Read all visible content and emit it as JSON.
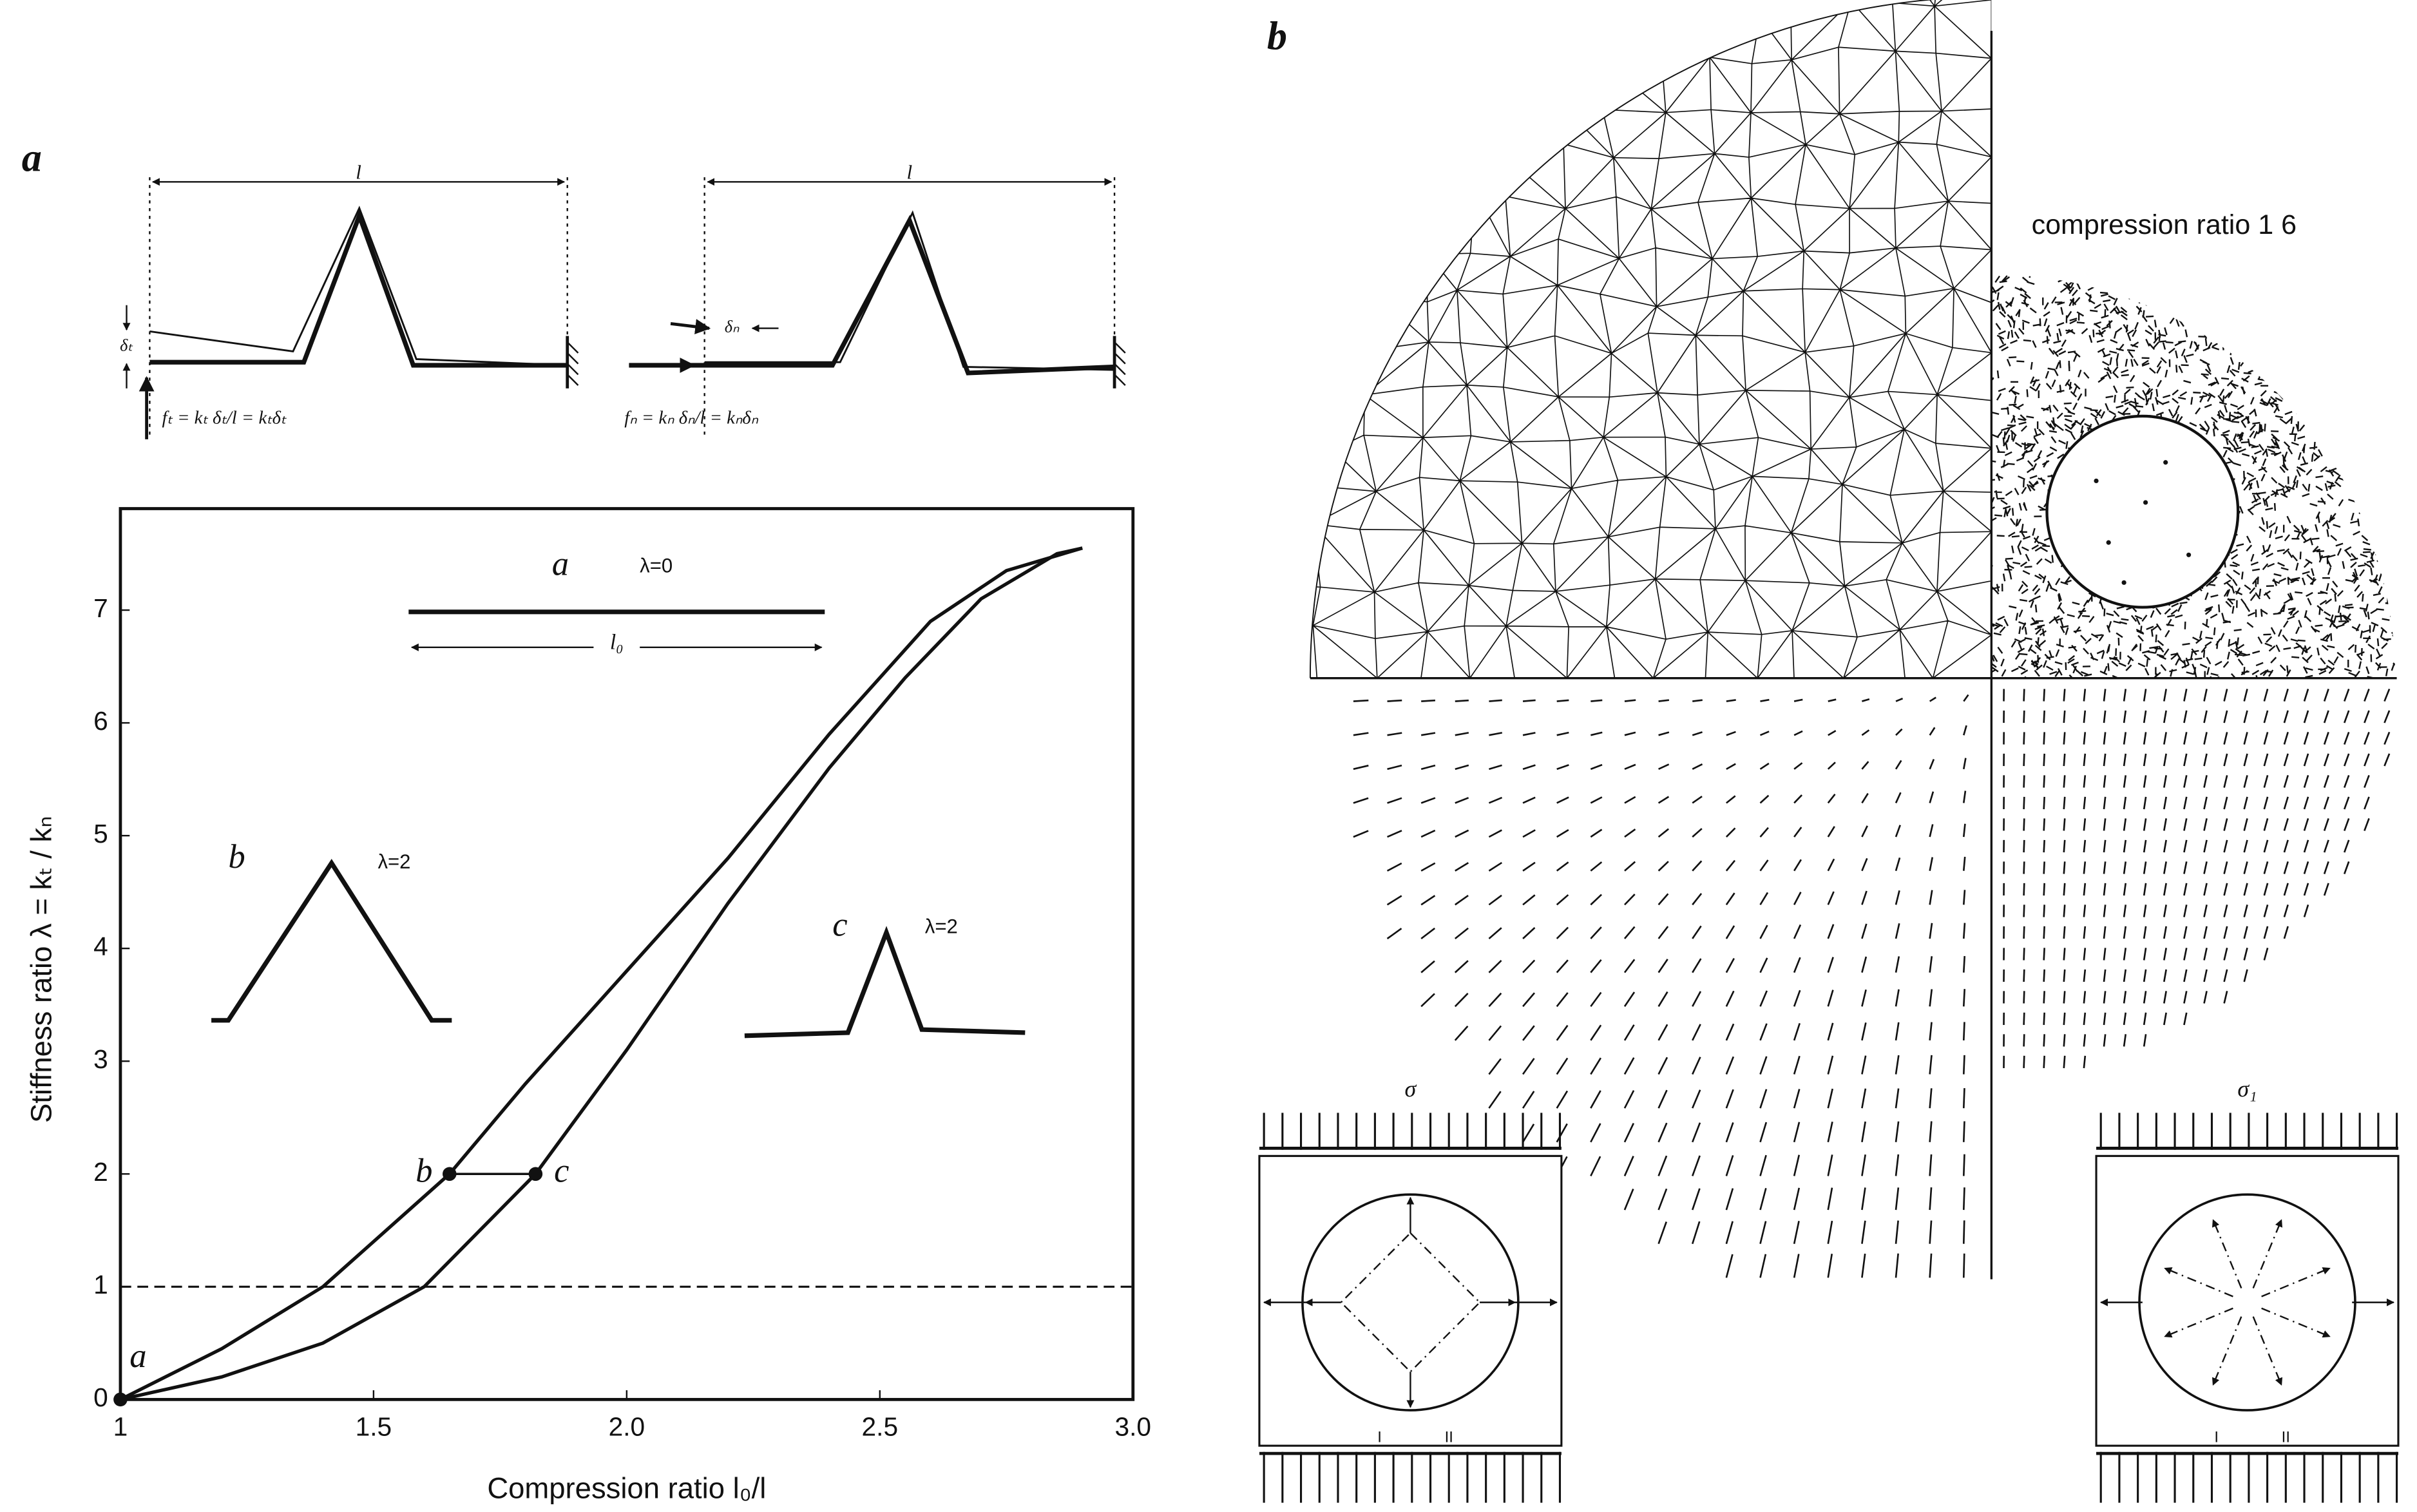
{
  "panel_labels": [
    "a",
    "b"
  ],
  "schematics": {
    "tangential": {
      "length": "l",
      "offset": "δₜ",
      "formula": "fₜ = kₜ δₜ/l = kₜδₜ"
    },
    "normal": {
      "length": "l",
      "offset": "δₙ",
      "formula": "fₙ = kₙ δₙ/l = kₙδₙ"
    }
  },
  "chart_data": {
    "type": "line",
    "xlabel": "Compression ratio l₀/l",
    "ylabel": "Stiffness ratio λ = kₜ / kₙ",
    "xlim": [
      1,
      3
    ],
    "ylim": [
      0,
      7.9
    ],
    "xticks": [
      1,
      1.5,
      {
        "value": 2,
        "label": "2.0"
      },
      2.5,
      {
        "value": 3,
        "label": "3.0"
      }
    ],
    "yticks": [
      0,
      1,
      2,
      3,
      4,
      5,
      6,
      7
    ],
    "grid": false,
    "color": "#111111",
    "series": [
      {
        "x": [
          1,
          1.2,
          1.4,
          1.5,
          1.65,
          1.8,
          2.0,
          2.2,
          2.4,
          2.5,
          2.6,
          2.75,
          2.9
        ],
        "values": [
          0,
          0.45,
          1.0,
          1.4,
          2.0,
          2.8,
          3.8,
          4.8,
          5.9,
          6.4,
          6.9,
          7.35,
          7.55
        ]
      },
      {
        "x": [
          1,
          1.2,
          1.4,
          1.6,
          1.82,
          2.0,
          2.2,
          2.4,
          2.55,
          2.7,
          2.85,
          2.9
        ],
        "values": [
          0,
          0.2,
          0.5,
          1.0,
          2.0,
          3.1,
          4.4,
          5.6,
          6.4,
          7.1,
          7.5,
          7.55
        ]
      }
    ],
    "hlines": [
      1
    ],
    "annotations": [
      {
        "text": "a",
        "x": 1,
        "y": 0
      },
      {
        "text": "b",
        "x": 1.65,
        "y": 2
      },
      {
        "text": "c",
        "x": 1.82,
        "y": 2
      }
    ],
    "insets": [
      {
        "label": "a",
        "lambda": "λ=0",
        "length": "l₀"
      },
      {
        "label": "b",
        "lambda": "λ=2"
      },
      {
        "label": "c",
        "lambda": "λ=2"
      }
    ]
  },
  "panel_b": {
    "caption": "compression ratio 1 6",
    "stress_labels": [
      "σ",
      "σ₁"
    ],
    "region_labels": [
      [
        "I",
        "II"
      ],
      [
        "I",
        "II"
      ]
    ]
  }
}
